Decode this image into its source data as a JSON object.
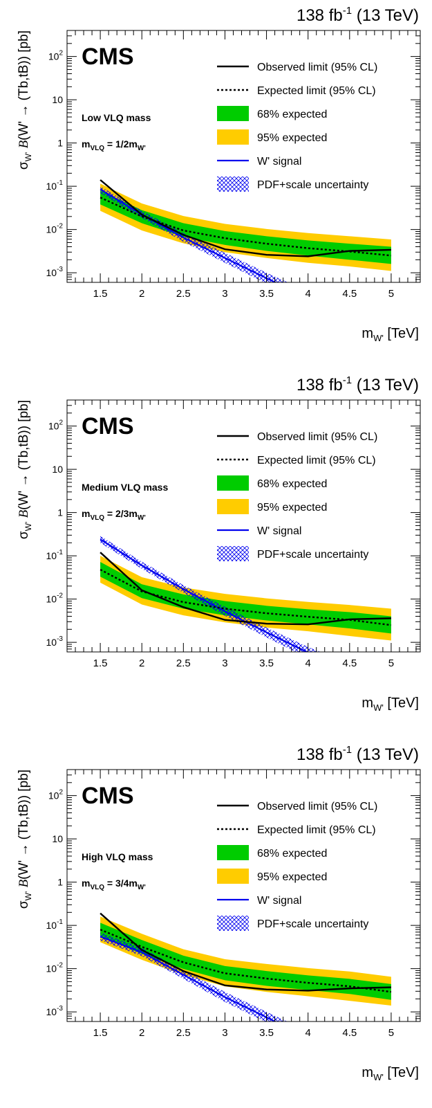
{
  "chart_data": [
    {
      "type": "line",
      "lumi": "138 fb",
      "lumi_exp": "-1",
      "energy": " (13 TeV)",
      "experiment": "CMS",
      "scenario": "Low VLQ mass",
      "mvlq_base": "m",
      "mvlq_sub": "VLQ",
      "mvlq_eq": " = 1/2m",
      "mvlq_sub2": "W'",
      "xlabel": {
        "main": "m",
        "sub": "W'",
        "unit": " [TeV]"
      },
      "ylabel": {
        "sigma": "σ",
        "sigma_sub": "W'",
        "b": "B",
        "decay": "(W' → (Tb,tB)) [pb]"
      },
      "xlim": [
        1.1,
        5.35
      ],
      "ylim": [
        0.0006,
        400
      ],
      "x_ticks": [
        "1.5",
        "2",
        "2.5",
        "3",
        "3.5",
        "4",
        "4.5",
        "5"
      ],
      "y_ticks": [
        {
          "base": "10",
          "exp": "2",
          "value": 100
        },
        {
          "base": "10",
          "exp": "",
          "value": 10
        },
        {
          "base": "1",
          "exp": "",
          "value": 1
        },
        {
          "base": "10",
          "exp": "-1",
          "value": 0.1
        },
        {
          "base": "10",
          "exp": "-2",
          "value": 0.01
        },
        {
          "base": "10",
          "exp": "-3",
          "value": 0.001
        }
      ],
      "legend": [
        "Observed limit (95% CL)",
        "Expected limit (95% CL)",
        "68% expected",
        "95% expected",
        "W' signal",
        "PDF+scale uncertainty"
      ],
      "x": [
        1.5,
        2,
        2.5,
        3,
        3.5,
        4,
        4.5,
        5
      ],
      "observed": [
        0.14,
        0.022,
        0.0075,
        0.0035,
        0.0026,
        0.0024,
        0.0032,
        0.0034
      ],
      "expected": [
        0.055,
        0.02,
        0.0095,
        0.0063,
        0.0047,
        0.0037,
        0.0031,
        0.0025
      ],
      "band68_low": [
        0.038,
        0.014,
        0.0068,
        0.0044,
        0.0032,
        0.0025,
        0.002,
        0.0016
      ],
      "band68_high": [
        0.08,
        0.028,
        0.014,
        0.0092,
        0.007,
        0.0056,
        0.0047,
        0.004
      ],
      "band95_low": [
        0.027,
        0.0095,
        0.0048,
        0.003,
        0.0022,
        0.0017,
        0.0014,
        0.0011
      ],
      "band95_high": [
        0.115,
        0.04,
        0.0205,
        0.0135,
        0.0103,
        0.0083,
        0.007,
        0.0059
      ],
      "signal_x": [
        1.5,
        2,
        2.5,
        3,
        3.5,
        4
      ],
      "signal": [
        0.085,
        0.022,
        0.0065,
        0.0022,
        0.00075,
        0.00026
      ],
      "signal_low": [
        0.07,
        0.0185,
        0.0052,
        0.0017,
        0.00056,
        0.00018
      ],
      "signal_high": [
        0.1,
        0.027,
        0.0082,
        0.0029,
        0.001,
        0.00037
      ],
      "colors": {
        "band68": "#00cc00",
        "band95": "#ffcc00",
        "signal": "#0000ee",
        "line": "#000000"
      }
    },
    {
      "type": "line",
      "lumi": "138 fb",
      "lumi_exp": "-1",
      "energy": " (13 TeV)",
      "experiment": "CMS",
      "scenario": "Medium VLQ mass",
      "mvlq_base": "m",
      "mvlq_sub": "VLQ",
      "mvlq_eq": " = 2/3m",
      "mvlq_sub2": "W'",
      "xlabel": {
        "main": "m",
        "sub": "W'",
        "unit": " [TeV]"
      },
      "ylabel": {
        "sigma": "σ",
        "sigma_sub": "W'",
        "b": "B",
        "decay": "(W' → (Tb,tB)) [pb]"
      },
      "xlim": [
        1.1,
        5.35
      ],
      "ylim": [
        0.0006,
        400
      ],
      "x_ticks": [
        "1.5",
        "2",
        "2.5",
        "3",
        "3.5",
        "4",
        "4.5",
        "5"
      ],
      "y_ticks": [
        {
          "base": "10",
          "exp": "2",
          "value": 100
        },
        {
          "base": "10",
          "exp": "",
          "value": 10
        },
        {
          "base": "1",
          "exp": "",
          "value": 1
        },
        {
          "base": "10",
          "exp": "-1",
          "value": 0.1
        },
        {
          "base": "10",
          "exp": "-2",
          "value": 0.01
        },
        {
          "base": "10",
          "exp": "-3",
          "value": 0.001
        }
      ],
      "legend": [
        "Observed limit (95% CL)",
        "Expected limit (95% CL)",
        "68% expected",
        "95% expected",
        "W' signal",
        "PDF+scale uncertainty"
      ],
      "x": [
        1.5,
        2,
        2.5,
        3,
        3.5,
        4,
        4.5,
        5
      ],
      "observed": [
        0.12,
        0.016,
        0.0065,
        0.0033,
        0.0027,
        0.0026,
        0.0034,
        0.0036
      ],
      "expected": [
        0.048,
        0.015,
        0.0085,
        0.006,
        0.0047,
        0.0039,
        0.0033,
        0.0025
      ],
      "band68_low": [
        0.033,
        0.0105,
        0.006,
        0.0042,
        0.0032,
        0.0026,
        0.0021,
        0.0016
      ],
      "band68_high": [
        0.072,
        0.022,
        0.0128,
        0.009,
        0.007,
        0.0058,
        0.005,
        0.004
      ],
      "band95_low": [
        0.024,
        0.0075,
        0.0042,
        0.0029,
        0.0022,
        0.0018,
        0.0014,
        0.0011
      ],
      "band95_high": [
        0.1,
        0.032,
        0.0185,
        0.0132,
        0.0104,
        0.0086,
        0.0073,
        0.006
      ],
      "signal_x": [
        1.5,
        2,
        2.5,
        3,
        3.5,
        4,
        4.2
      ],
      "signal": [
        0.24,
        0.06,
        0.017,
        0.0052,
        0.0017,
        0.00058,
        0.0004
      ],
      "signal_low": [
        0.2,
        0.05,
        0.014,
        0.0041,
        0.0013,
        0.00043,
        0.00028
      ],
      "signal_high": [
        0.29,
        0.073,
        0.021,
        0.0066,
        0.0022,
        0.00078,
        0.00055
      ],
      "colors": {
        "band68": "#00cc00",
        "band95": "#ffcc00",
        "signal": "#0000ee",
        "line": "#000000"
      }
    },
    {
      "type": "line",
      "lumi": "138 fb",
      "lumi_exp": "-1",
      "energy": " (13 TeV)",
      "experiment": "CMS",
      "scenario": "High VLQ mass",
      "mvlq_base": "m",
      "mvlq_sub": "VLQ",
      "mvlq_eq": " = 3/4m",
      "mvlq_sub2": "W'",
      "xlabel": {
        "main": "m",
        "sub": "W'",
        "unit": " [TeV]"
      },
      "ylabel": {
        "sigma": "σ",
        "sigma_sub": "W'",
        "b": "B",
        "decay": "(W' → (Tb,tB)) [pb]"
      },
      "xlim": [
        1.1,
        5.35
      ],
      "ylim": [
        0.0006,
        400
      ],
      "x_ticks": [
        "1.5",
        "2",
        "2.5",
        "3",
        "3.5",
        "4",
        "4.5",
        "5"
      ],
      "y_ticks": [
        {
          "base": "10",
          "exp": "2",
          "value": 100
        },
        {
          "base": "10",
          "exp": "",
          "value": 10
        },
        {
          "base": "1",
          "exp": "",
          "value": 1
        },
        {
          "base": "10",
          "exp": "-1",
          "value": 0.1
        },
        {
          "base": "10",
          "exp": "-2",
          "value": 0.01
        },
        {
          "base": "10",
          "exp": "-3",
          "value": 0.001
        }
      ],
      "legend": [
        "Observed limit (95% CL)",
        "Expected limit (95% CL)",
        "68% expected",
        "95% expected",
        "W' signal",
        "PDF+scale uncertainty"
      ],
      "x": [
        1.5,
        2,
        2.5,
        3,
        3.5,
        4,
        4.5,
        5
      ],
      "observed": [
        0.19,
        0.027,
        0.0088,
        0.0041,
        0.0033,
        0.0031,
        0.0035,
        0.0037
      ],
      "expected": [
        0.08,
        0.032,
        0.014,
        0.0078,
        0.0059,
        0.0047,
        0.0039,
        0.0029
      ],
      "band68_low": [
        0.055,
        0.022,
        0.0098,
        0.0054,
        0.004,
        0.0032,
        0.0026,
        0.0019
      ],
      "band68_high": [
        0.115,
        0.046,
        0.02,
        0.0115,
        0.0088,
        0.007,
        0.0058,
        0.0044
      ],
      "band95_low": [
        0.041,
        0.016,
        0.0072,
        0.0039,
        0.0029,
        0.0023,
        0.0018,
        0.0014
      ],
      "band95_high": [
        0.16,
        0.064,
        0.028,
        0.0165,
        0.0128,
        0.0103,
        0.0086,
        0.0065
      ],
      "signal_x": [
        1.5,
        2,
        2.5,
        3,
        3.5,
        4
      ],
      "signal": [
        0.055,
        0.024,
        0.0072,
        0.0022,
        0.00075,
        0.00025
      ],
      "signal_low": [
        0.045,
        0.0195,
        0.0058,
        0.0017,
        0.00057,
        0.00018
      ],
      "signal_high": [
        0.068,
        0.03,
        0.0092,
        0.0029,
        0.001,
        0.00036
      ],
      "colors": {
        "band68": "#00cc00",
        "band95": "#ffcc00",
        "signal": "#0000ee",
        "line": "#000000"
      }
    }
  ]
}
